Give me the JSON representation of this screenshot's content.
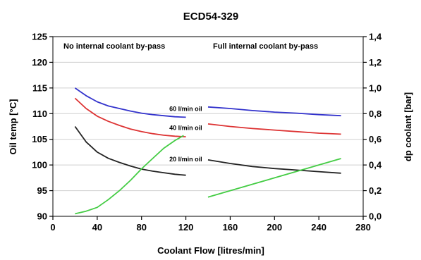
{
  "chart_data": {
    "type": "line",
    "title": "ECD54-329",
    "xlabel": "Coolant Flow  [litres/min]",
    "ylabel": "Oil temp [°C]",
    "y2label": "dp coolant [bar]",
    "xlim": [
      0,
      280
    ],
    "ylim": [
      90,
      125
    ],
    "y2lim": [
      0,
      1.4
    ],
    "xticks": [
      "0",
      "40",
      "80",
      "120",
      "160",
      "200",
      "240",
      "280"
    ],
    "yticks": [
      "90",
      "95",
      "100",
      "105",
      "110",
      "115",
      "120",
      "125"
    ],
    "y2ticks": [
      "0,0",
      "0,2",
      "0,4",
      "0,6",
      "0,8",
      "1,0",
      "1,2",
      "1,4"
    ],
    "grid": true,
    "region_labels": [
      "No internal coolant by-pass",
      "Full internal coolant by-pass"
    ],
    "series": [
      {
        "name": "60 l/min oil",
        "color": "#3333cc",
        "axis": "left",
        "segments": [
          [
            [
              20,
              115
            ],
            [
              30,
              113.5
            ],
            [
              40,
              112.3
            ],
            [
              50,
              111.5
            ],
            [
              60,
              111.0
            ],
            [
              70,
              110.5
            ],
            [
              80,
              110.1
            ],
            [
              90,
              109.8
            ],
            [
              100,
              109.6
            ],
            [
              110,
              109.4
            ],
            [
              120,
              109.3
            ]
          ],
          [
            [
              140,
              111.3
            ],
            [
              160,
              111.0
            ],
            [
              180,
              110.6
            ],
            [
              200,
              110.3
            ],
            [
              220,
              110.1
            ],
            [
              240,
              109.8
            ],
            [
              260,
              109.6
            ]
          ]
        ]
      },
      {
        "name": "40 l/min oil",
        "color": "#dd3333",
        "axis": "left",
        "segments": [
          [
            [
              20,
              113
            ],
            [
              30,
              111
            ],
            [
              40,
              109.5
            ],
            [
              50,
              108.5
            ],
            [
              60,
              107.7
            ],
            [
              70,
              107.0
            ],
            [
              80,
              106.5
            ],
            [
              90,
              106.1
            ],
            [
              100,
              105.8
            ],
            [
              110,
              105.6
            ],
            [
              120,
              105.5
            ]
          ],
          [
            [
              140,
              108.0
            ],
            [
              160,
              107.5
            ],
            [
              180,
              107.1
            ],
            [
              200,
              106.8
            ],
            [
              220,
              106.5
            ],
            [
              240,
              106.2
            ],
            [
              260,
              106.0
            ]
          ]
        ]
      },
      {
        "name": "20 l/min oil",
        "color": "#222222",
        "axis": "left",
        "segments": [
          [
            [
              20,
              107.5
            ],
            [
              30,
              104.5
            ],
            [
              40,
              102.5
            ],
            [
              50,
              101.3
            ],
            [
              60,
              100.5
            ],
            [
              70,
              99.8
            ],
            [
              80,
              99.2
            ],
            [
              90,
              98.8
            ],
            [
              100,
              98.5
            ],
            [
              110,
              98.2
            ],
            [
              120,
              98.0
            ]
          ],
          [
            [
              140,
              101.0
            ],
            [
              160,
              100.3
            ],
            [
              180,
              99.7
            ],
            [
              200,
              99.3
            ],
            [
              220,
              99.0
            ],
            [
              240,
              98.7
            ],
            [
              260,
              98.4
            ]
          ]
        ]
      },
      {
        "name": "dp coolant",
        "color": "#44cc44",
        "axis": "right",
        "segments": [
          [
            [
              20,
              0.02
            ],
            [
              30,
              0.04
            ],
            [
              40,
              0.07
            ],
            [
              50,
              0.13
            ],
            [
              60,
              0.2
            ],
            [
              70,
              0.28
            ],
            [
              80,
              0.37
            ],
            [
              90,
              0.45
            ],
            [
              100,
              0.53
            ],
            [
              110,
              0.59
            ],
            [
              118,
              0.63
            ]
          ],
          [
            [
              140,
              0.15
            ],
            [
              160,
              0.2
            ],
            [
              180,
              0.25
            ],
            [
              200,
              0.3
            ],
            [
              220,
              0.35
            ],
            [
              240,
              0.4
            ],
            [
              260,
              0.45
            ]
          ]
        ]
      }
    ]
  }
}
